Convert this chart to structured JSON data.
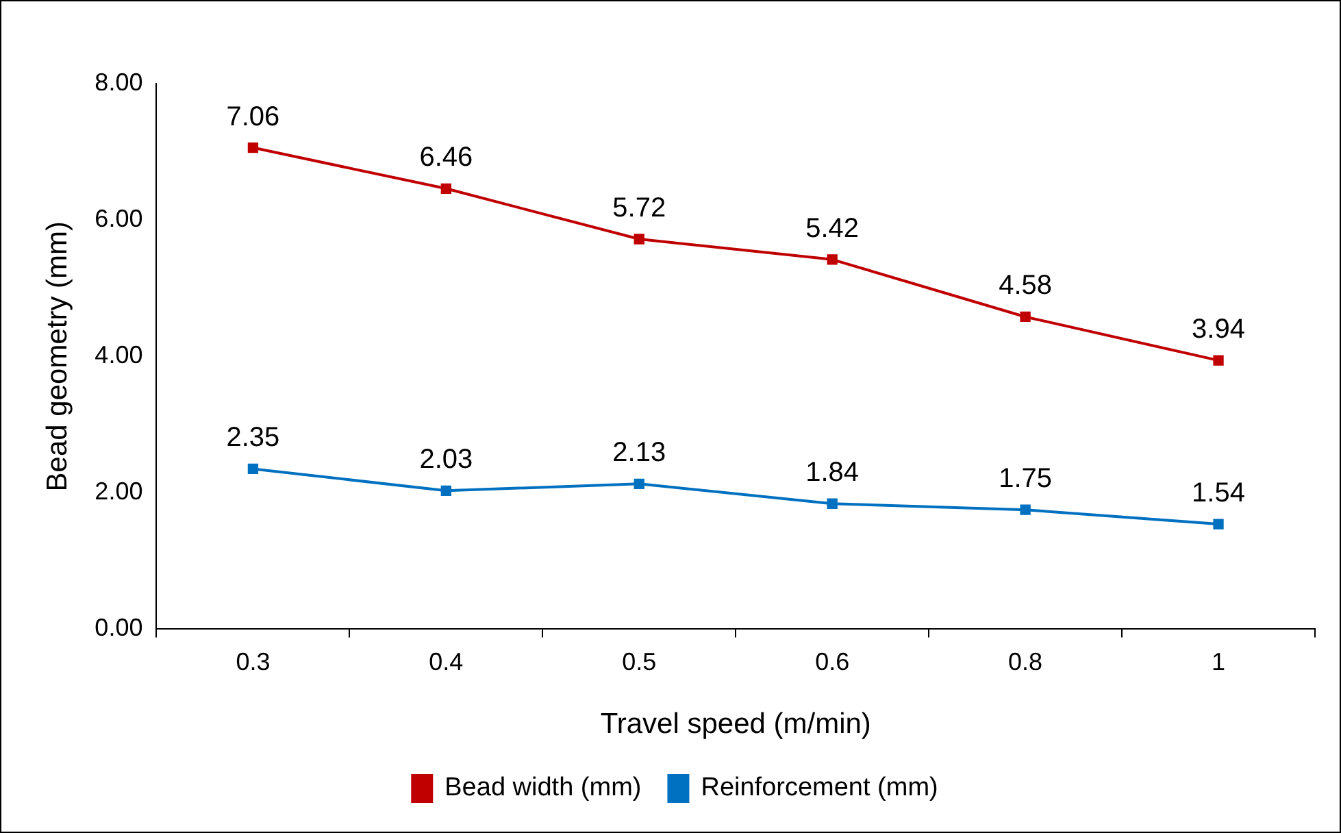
{
  "chart_data": {
    "type": "line",
    "xlabel": "Travel speed (m/min)",
    "ylabel": "Bead geometry (mm)",
    "categories": [
      "0.3",
      "0.4",
      "0.5",
      "0.6",
      "0.8",
      "1"
    ],
    "series": [
      {
        "name": "Bead width (mm)",
        "color": "#c00000",
        "values": [
          7.06,
          6.46,
          5.72,
          5.42,
          4.58,
          3.94
        ]
      },
      {
        "name": "Reinforcement (mm)",
        "color": "#0070c0",
        "values": [
          2.35,
          2.03,
          2.13,
          1.84,
          1.75,
          1.54
        ]
      }
    ],
    "ylim": [
      0,
      8
    ],
    "yticks": [
      {
        "value": 0,
        "label": "0.00"
      },
      {
        "value": 2,
        "label": "2.00"
      },
      {
        "value": 4,
        "label": "4.00"
      },
      {
        "value": 6,
        "label": "6.00"
      },
      {
        "value": 8,
        "label": "8.00"
      }
    ],
    "grid": false,
    "legend": "bottom",
    "marker": "square",
    "line_style": "solid",
    "data_labels": true
  }
}
